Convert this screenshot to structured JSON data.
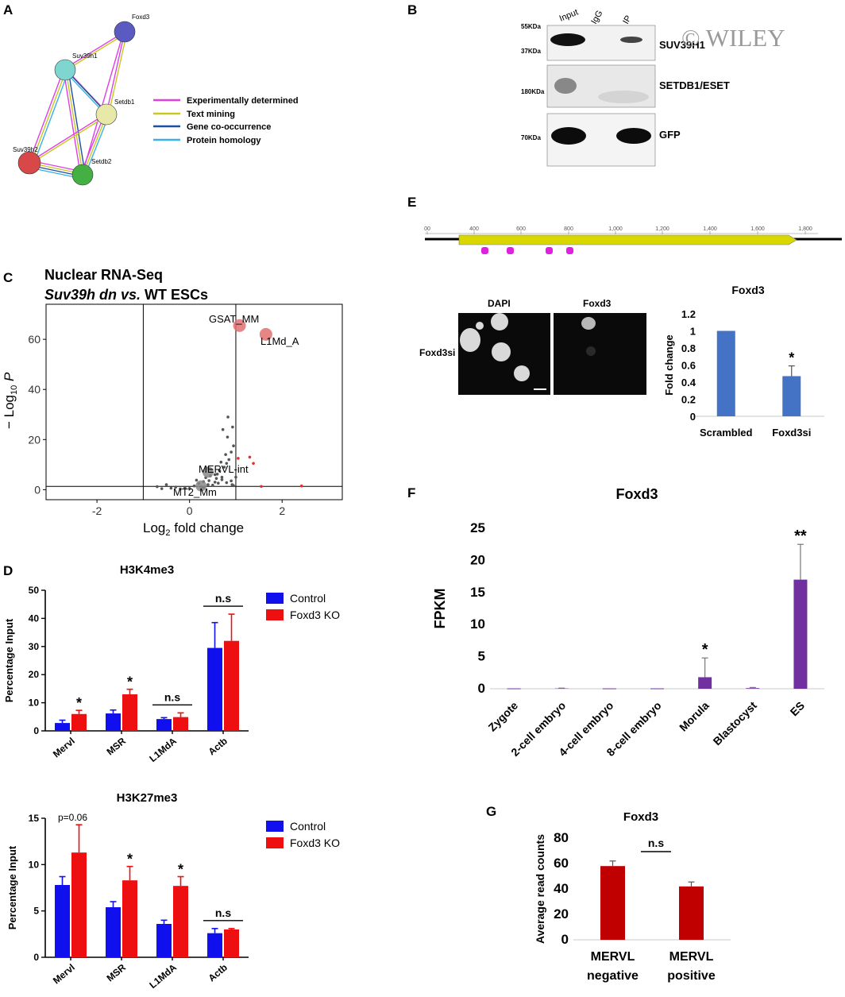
{
  "watermark": "© WILEY",
  "panel_labels": [
    "A",
    "B",
    "C",
    "D",
    "E",
    "F",
    "G"
  ],
  "panel_a": {
    "nodes": [
      "Foxd3",
      "Suv39h1",
      "Setdb1",
      "Suv39h2",
      "Setdb2"
    ],
    "legend": [
      {
        "label": "Experimentally determined",
        "color": "#e040e0"
      },
      {
        "label": "Text mining",
        "color": "#c8c820"
      },
      {
        "label": "Gene co-occurrence",
        "color": "#1e4fa0"
      },
      {
        "label": "Protein homology",
        "color": "#3ab0e8"
      }
    ]
  },
  "panel_b": {
    "lanes": [
      "Input",
      "IgG",
      "IP"
    ],
    "sizes": [
      "55KDa",
      "37KDa",
      "180KDa",
      "70KDa"
    ],
    "proteins": [
      "SUV39H1",
      "SETDB1/ESET",
      "GFP"
    ]
  },
  "panel_e": {
    "ruler_ticks": [
      "00",
      "400",
      "600",
      "800",
      "1,000",
      "1,200",
      "1,400",
      "1,600",
      "1,800"
    ],
    "image_labels": [
      "DAPI",
      "Foxd3"
    ],
    "row_label": "Foxd3si"
  },
  "chart_data": [
    {
      "id": "C",
      "type": "scatter",
      "title": "Nuclear RNA-Seq",
      "subtitle": "Suv39h dn vs. WT ESCs",
      "xlabel": "Log2 fold change",
      "ylabel": "− Log10 P",
      "xlim": [
        -3.1,
        3.3
      ],
      "ylim": [
        -4,
        74
      ],
      "xticks": [
        -2,
        0,
        2
      ],
      "yticks": [
        0,
        20,
        40,
        60
      ],
      "vlines": [
        -1,
        1
      ],
      "hline": 1.3,
      "labeled_points": [
        {
          "label": "GSAT_MM",
          "x": 1.08,
          "y": 65.5,
          "color": "#e07070"
        },
        {
          "label": "L1Md_A",
          "x": 1.65,
          "y": 62,
          "color": "#e07070"
        },
        {
          "label": "MERVL-int",
          "x": 0.4,
          "y": 7,
          "color": "#888888"
        },
        {
          "label": "MT2_Mm",
          "x": 0.25,
          "y": 1.5,
          "color": "#888888"
        }
      ],
      "gray_points": [
        [
          -0.7,
          1.2
        ],
        [
          -0.5,
          2.0
        ],
        [
          -0.3,
          1.0
        ],
        [
          -0.1,
          0.8
        ],
        [
          0.1,
          1.5
        ],
        [
          0.2,
          2.5
        ],
        [
          0.3,
          3.2
        ],
        [
          0.35,
          4.8
        ],
        [
          0.45,
          5.5
        ],
        [
          0.55,
          3.0
        ],
        [
          0.6,
          6.2
        ],
        [
          0.65,
          7.5
        ],
        [
          0.7,
          5.0
        ],
        [
          0.75,
          9.0
        ],
        [
          0.8,
          10.5
        ],
        [
          0.85,
          12.0
        ],
        [
          0.9,
          15.0
        ],
        [
          0.95,
          17.5
        ],
        [
          0.82,
          21.0
        ],
        [
          0.72,
          24.0
        ],
        [
          0.7,
          4.0
        ],
        [
          0.8,
          2.8
        ],
        [
          0.9,
          3.5
        ],
        [
          1.0,
          5.0
        ],
        [
          0.4,
          2.0
        ],
        [
          0.0,
          0.5
        ],
        [
          -0.2,
          0.3
        ],
        [
          0.15,
          3.8
        ],
        [
          0.5,
          1.8
        ],
        [
          0.62,
          2.6
        ],
        [
          0.3,
          0.8
        ],
        [
          0.25,
          1.1
        ],
        [
          0.55,
          6.0
        ],
        [
          0.48,
          7.8
        ],
        [
          0.38,
          8.5
        ],
        [
          -0.4,
          0.6
        ],
        [
          -0.6,
          0.4
        ],
        [
          0.95,
          1.6
        ],
        [
          0.78,
          14.0
        ],
        [
          0.68,
          11.0
        ],
        [
          0.83,
          29.0
        ],
        [
          0.93,
          25.0
        ],
        [
          0.92,
          2.0
        ],
        [
          0.58,
          4.5
        ],
        [
          0.42,
          3.6
        ]
      ],
      "red_points": [
        [
          1.3,
          13.0
        ],
        [
          1.38,
          10.5
        ],
        [
          1.55,
          1.3
        ],
        [
          2.42,
          1.5
        ],
        [
          1.05,
          12.5
        ]
      ]
    },
    {
      "id": "D1",
      "type": "bar",
      "title": "H3K4me3",
      "ylabel": "Percentage Input",
      "ylim": [
        0,
        50
      ],
      "yticks": [
        0,
        10,
        20,
        30,
        40,
        50
      ],
      "categories": [
        "Mervl",
        "MSR",
        "L1MdA",
        "Actb"
      ],
      "series": [
        {
          "name": "Control",
          "color": "#1010ee",
          "values": [
            2.8,
            6.2,
            4.2,
            29.5
          ],
          "errors": [
            1.0,
            1.2,
            0.5,
            9.0
          ]
        },
        {
          "name": "Foxd3 KO",
          "color": "#ee1010",
          "values": [
            6.0,
            13.0,
            4.9,
            32.0
          ],
          "errors": [
            1.3,
            1.8,
            1.5,
            9.5
          ]
        }
      ],
      "annotations": [
        "*",
        "*",
        "n.s",
        "n.s"
      ]
    },
    {
      "id": "D2",
      "type": "bar",
      "title": "H3K27me3",
      "ylabel": "Percentage Input",
      "ylim": [
        0,
        15
      ],
      "yticks": [
        0,
        5,
        10,
        15
      ],
      "categories": [
        "Mervl",
        "MSR",
        "L1MdA",
        "Actb"
      ],
      "series": [
        {
          "name": "Control",
          "color": "#1010ee",
          "values": [
            7.8,
            5.4,
            3.6,
            2.6
          ],
          "errors": [
            0.9,
            0.6,
            0.4,
            0.5
          ]
        },
        {
          "name": "Foxd3 KO",
          "color": "#ee1010",
          "values": [
            11.3,
            8.3,
            7.7,
            3.0
          ],
          "errors": [
            3.0,
            1.5,
            1.0,
            0.1
          ]
        }
      ],
      "annotations": [
        "p=0.06",
        "*",
        "*",
        "n.s"
      ]
    },
    {
      "id": "E",
      "type": "bar",
      "title": "Foxd3",
      "ylabel": "Fold change",
      "ylim": [
        0,
        1.2
      ],
      "yticks": [
        "0",
        "0.2",
        "0.4",
        "0.6",
        "0.8",
        "1",
        "1.2"
      ],
      "categories": [
        "Scrambled",
        "Foxd3si"
      ],
      "values": [
        1.0,
        0.47
      ],
      "errors": [
        0.0,
        0.12
      ],
      "color": "#4472c4",
      "annotations": [
        "",
        "*"
      ]
    },
    {
      "id": "F",
      "type": "bar",
      "title": "Foxd3",
      "ylabel": "FPKM",
      "ylim": [
        0,
        25
      ],
      "yticks": [
        0,
        5,
        10,
        15,
        20,
        25
      ],
      "categories": [
        "Zygote",
        "2-cell embryo",
        "4-cell embryo",
        "8-cell embryo",
        "Morula",
        "Blastocyst",
        "ES"
      ],
      "values": [
        0,
        0.05,
        0,
        0,
        1.8,
        0.1,
        17.0
      ],
      "errors": [
        0,
        0.05,
        0,
        0,
        3.0,
        0.1,
        5.5
      ],
      "color": "#7030a0",
      "annotations": [
        "",
        "",
        "",
        "",
        "*",
        "",
        "**"
      ]
    },
    {
      "id": "G",
      "type": "bar",
      "title": "Foxd3",
      "ylabel": "Average read counts",
      "ylim": [
        0,
        80
      ],
      "yticks": [
        0,
        20,
        40,
        60,
        80
      ],
      "categories": [
        "MERVL negative",
        "MERVL positive"
      ],
      "values": [
        58,
        42
      ],
      "errors": [
        4,
        3.5
      ],
      "color": "#c00000",
      "annotations": [
        "n.s"
      ]
    }
  ]
}
